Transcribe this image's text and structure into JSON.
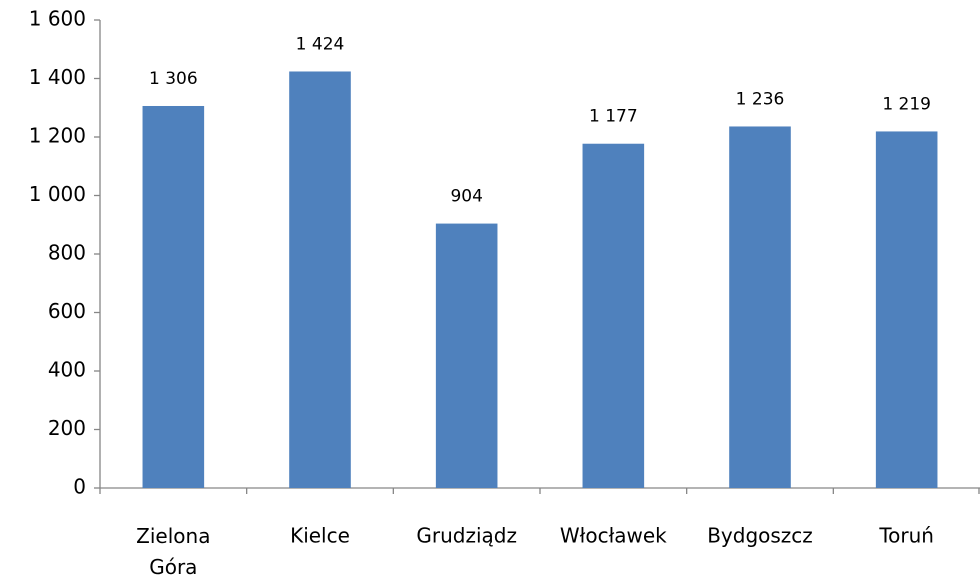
{
  "chart_data": {
    "type": "bar",
    "categories": [
      "Zielona Góra",
      "Kielce",
      "Grudziądz",
      "Włocławek",
      "Bydgoszcz",
      "Toruń"
    ],
    "values": [
      1306,
      1424,
      904,
      1177,
      1236,
      1219
    ],
    "value_labels": [
      "1 306",
      "1 424",
      "904",
      "1 177",
      "1 236",
      "1 219"
    ],
    "color": "#4f81bd",
    "ylim": [
      0,
      1600
    ],
    "yticks": [
      0,
      200,
      400,
      600,
      800,
      {
        "value": 1000,
        "label": "1 000"
      },
      {
        "value": 1200,
        "label": "1 200"
      },
      {
        "value": 1400,
        "label": "1 400"
      },
      {
        "value": 1600,
        "label": "1 600"
      }
    ],
    "grid": false
  }
}
